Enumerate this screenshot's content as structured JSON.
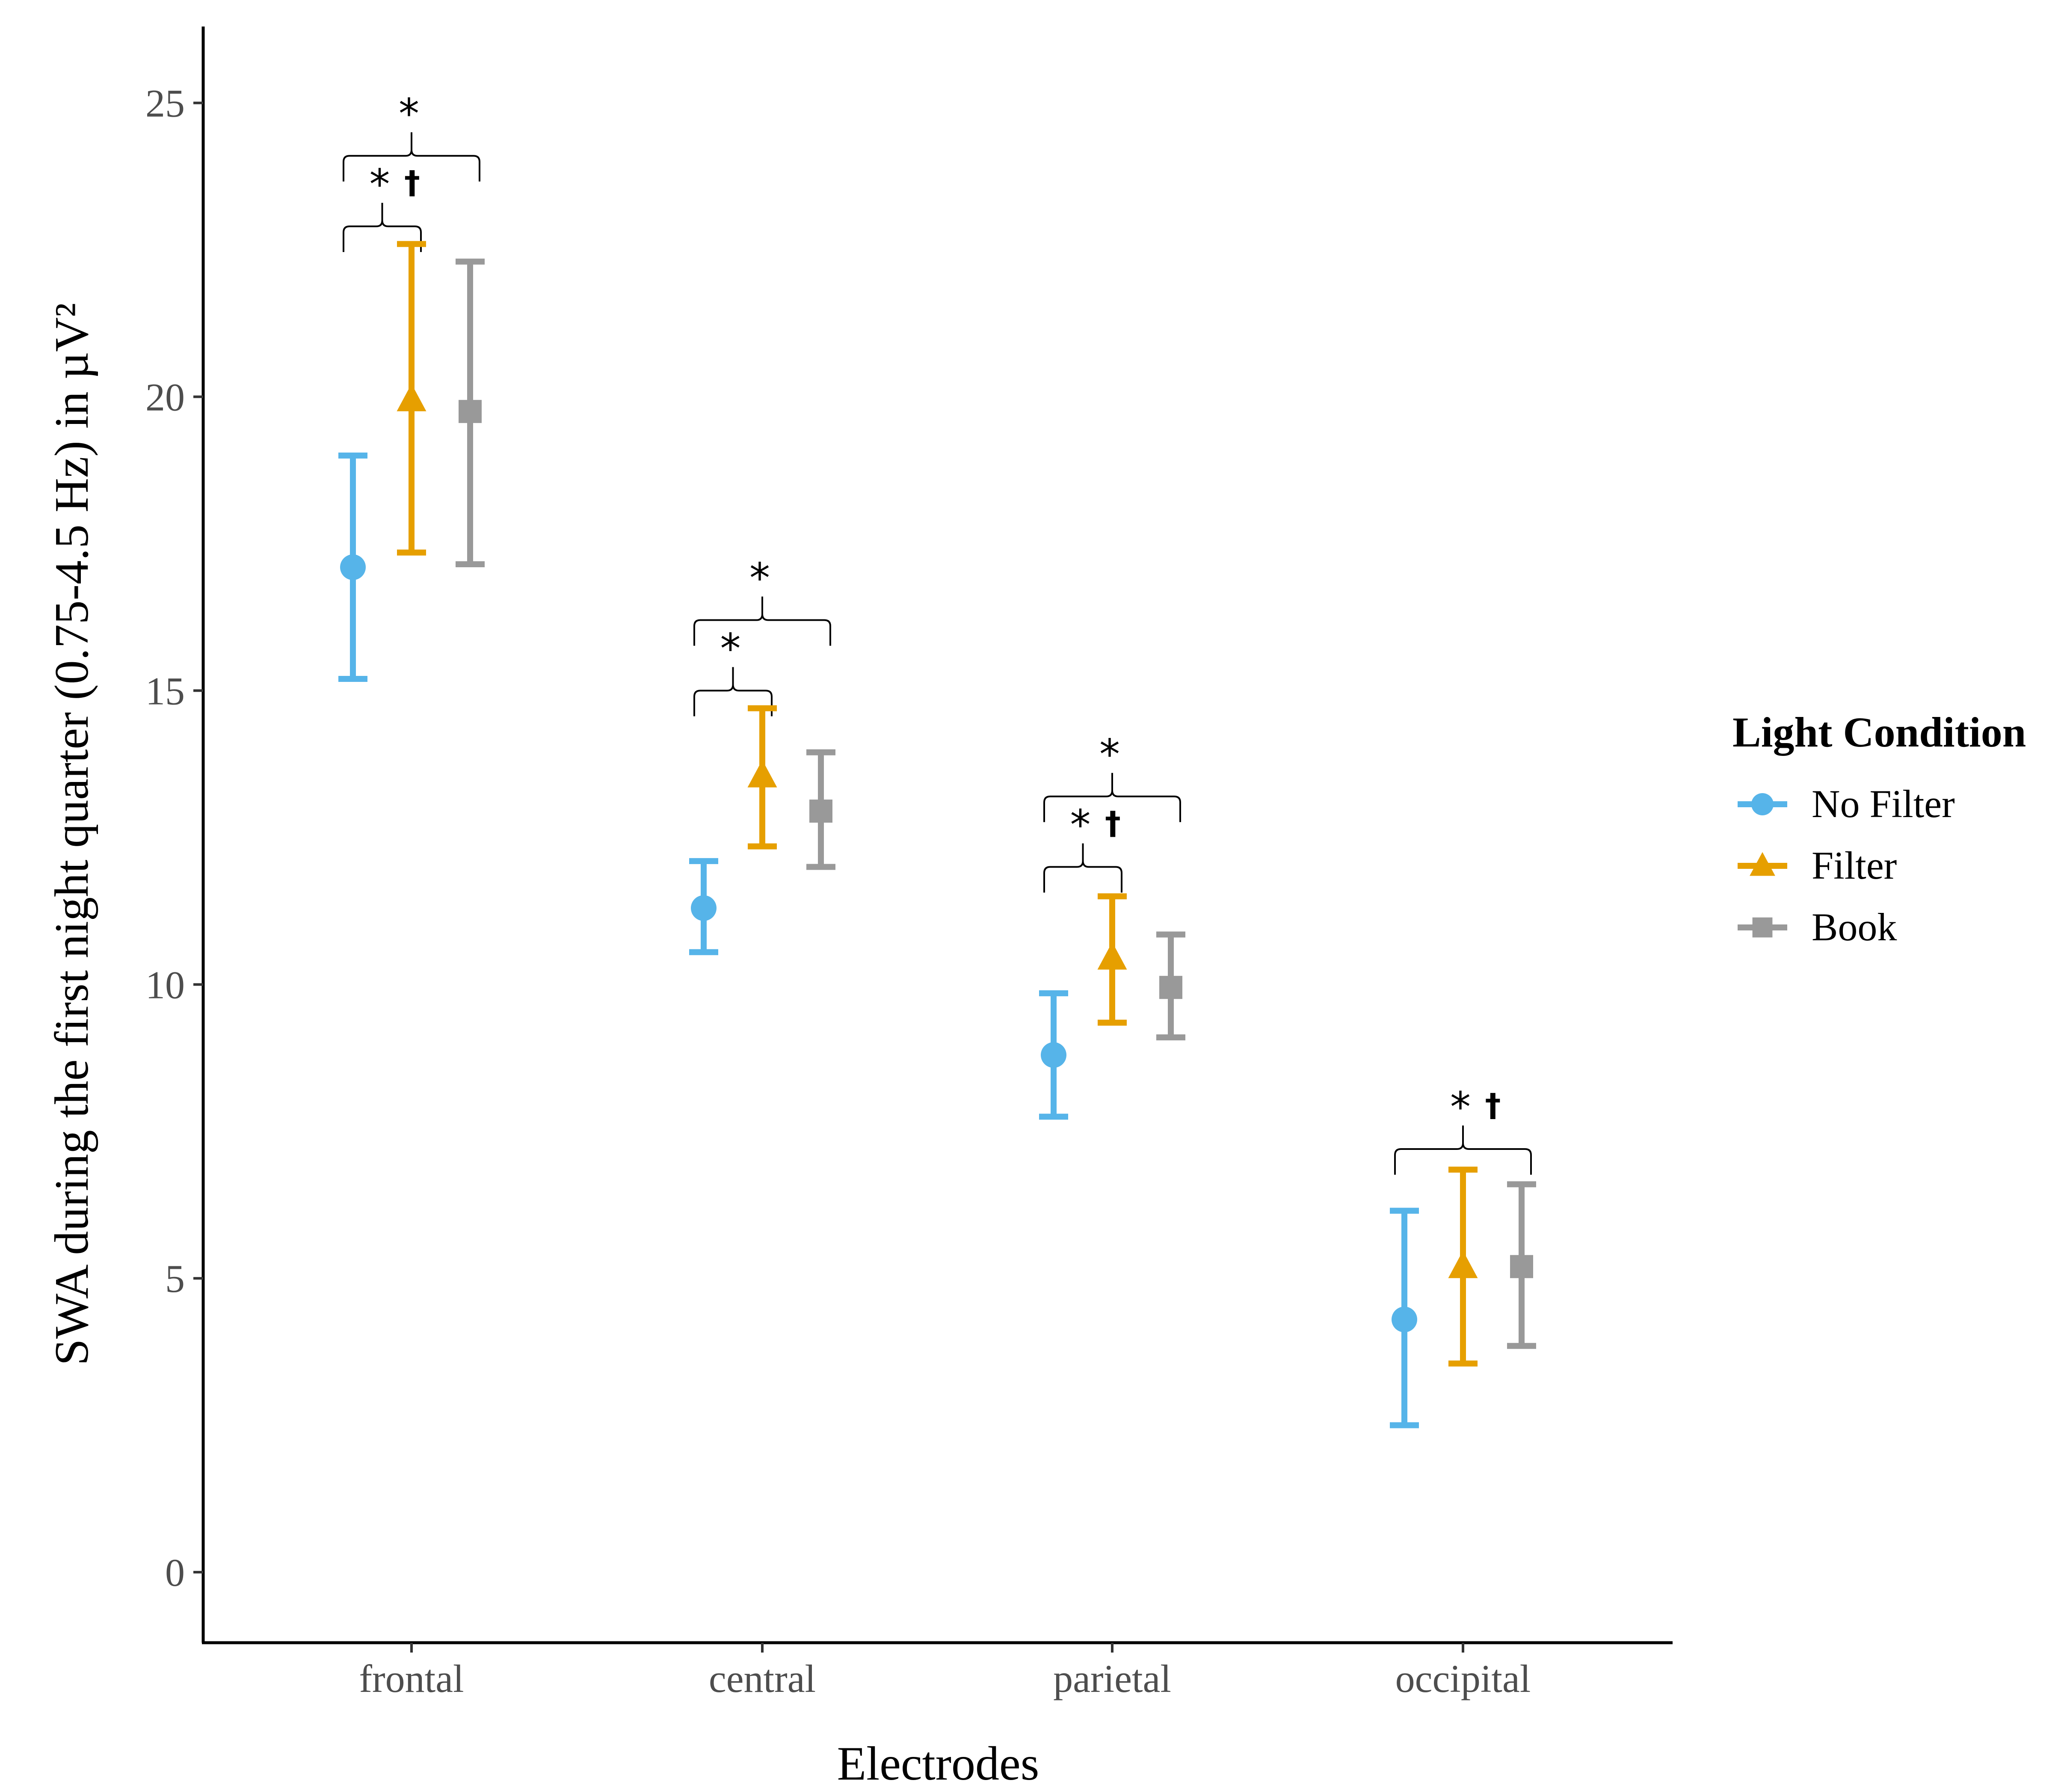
{
  "chart_data": {
    "type": "errorbar",
    "xlabel": "Electrodes",
    "ylabel": "SWA during the first night quarter (0.75-4.5 Hz) in µV²",
    "ylim": [
      -1.2,
      26.3
    ],
    "yticks": [
      0,
      5,
      10,
      15,
      20,
      25
    ],
    "categories": [
      "frontal",
      "central",
      "parietal",
      "occipital"
    ],
    "legend": {
      "title": "Light Condition",
      "position": "right"
    },
    "series": [
      {
        "name": "No Filter",
        "color": "#56B4E9",
        "marker": "circle",
        "values": [
          17.1,
          11.3,
          8.8,
          4.3
        ],
        "lower": [
          15.2,
          10.55,
          7.75,
          2.5
        ],
        "upper": [
          19.0,
          12.1,
          9.85,
          6.15
        ]
      },
      {
        "name": "Filter",
        "color": "#E69F00",
        "marker": "triangle",
        "values": [
          19.95,
          13.55,
          10.45,
          5.2
        ],
        "lower": [
          17.35,
          12.35,
          9.35,
          3.55
        ],
        "upper": [
          22.6,
          14.7,
          11.5,
          6.85
        ]
      },
      {
        "name": "Book",
        "color": "#999999",
        "marker": "square",
        "values": [
          19.75,
          12.95,
          9.95,
          5.2
        ],
        "lower": [
          17.15,
          12.0,
          9.1,
          3.85
        ],
        "upper": [
          22.3,
          13.95,
          10.85,
          6.6
        ]
      }
    ],
    "annotations": [
      {
        "category": "frontal",
        "from": "No Filter",
        "to": "Book",
        "y": 24.1,
        "label": "*",
        "dagger": ""
      },
      {
        "category": "frontal",
        "from": "No Filter",
        "to": "Filter",
        "y": 22.9,
        "label": "*",
        "dagger": "†"
      },
      {
        "category": "central",
        "from": "No Filter",
        "to": "Book",
        "y": 16.2,
        "label": "*",
        "dagger": ""
      },
      {
        "category": "central",
        "from": "No Filter",
        "to": "Filter",
        "y": 15.0,
        "label": "*",
        "dagger": ""
      },
      {
        "category": "parietal",
        "from": "No Filter",
        "to": "Book",
        "y": 13.2,
        "label": "*",
        "dagger": ""
      },
      {
        "category": "parietal",
        "from": "No Filter",
        "to": "Filter",
        "y": 12.0,
        "label": "*",
        "dagger": "†"
      },
      {
        "category": "occipital",
        "from": "No Filter",
        "to": "Book",
        "y": 7.2,
        "label": "*",
        "dagger": "†"
      }
    ]
  }
}
